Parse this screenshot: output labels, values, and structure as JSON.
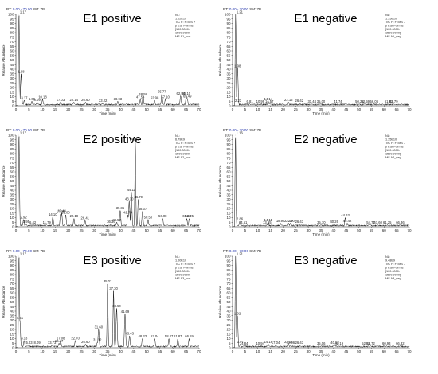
{
  "header": {
    "rt_label": "RT:",
    "rt_range": "0.00 - 70.00",
    "sm_label": "SM:",
    "sm_value": "7B"
  },
  "chart_data": [
    {
      "type": "line",
      "title": "E1 positive",
      "xlabel": "Time (min)",
      "ylabel": "Relative Abundance",
      "xlim": [
        0,
        70
      ],
      "ylim": [
        0,
        100
      ],
      "x_ticks": [
        0,
        5,
        10,
        15,
        20,
        25,
        30,
        35,
        40,
        45,
        50,
        55,
        60,
        65,
        70
      ],
      "y_ticks": [
        0,
        5,
        10,
        15,
        20,
        25,
        30,
        35,
        40,
        45,
        50,
        55,
        60,
        65,
        70,
        75,
        80,
        85,
        90,
        95,
        100
      ],
      "info": [
        "NL:",
        "1.02E10",
        "TIC F: FTMS +",
        "p ESI Full ms",
        "[100.0000-",
        "1500.0000]",
        "MS A1_pos"
      ],
      "peaks": [
        {
          "rt": 1.17,
          "value": 100,
          "label": "1.17"
        },
        {
          "rt": 1.98,
          "value": 35,
          "label": "1.98"
        },
        {
          "rt": 3.17,
          "value": 6,
          "label": "3.17"
        },
        {
          "rt": 6.09,
          "value": 5,
          "label": "6.09"
        },
        {
          "rt": 8.09,
          "value": 4,
          "label": "8.09"
        },
        {
          "rt": 10.18,
          "value": 7,
          "label": "10.18"
        },
        {
          "rt": 17.03,
          "value": 4,
          "label": "17.03"
        },
        {
          "rt": 22.14,
          "value": 4,
          "label": "22.14"
        },
        {
          "rt": 26.6,
          "value": 4,
          "label": "26.60"
        },
        {
          "rt": 33.22,
          "value": 3,
          "label": "33.22"
        },
        {
          "rt": 38.93,
          "value": 5,
          "label": "38.93"
        },
        {
          "rt": 47.54,
          "value": 7,
          "label": "47.54"
        },
        {
          "rt": 48.58,
          "value": 10,
          "label": "48.58"
        },
        {
          "rt": 52.98,
          "value": 6,
          "label": "52.98"
        },
        {
          "rt": 55.77,
          "value": 13,
          "label": "55.77"
        },
        {
          "rt": 57.1,
          "value": 7,
          "label": "57.10"
        },
        {
          "rt": 62.94,
          "value": 11,
          "label": "62.94"
        },
        {
          "rt": 65.1,
          "value": 11,
          "label": "65.10"
        },
        {
          "rt": 65.49,
          "value": 8,
          "label": "65.49"
        }
      ]
    },
    {
      "type": "line",
      "title": "E1 negative",
      "xlabel": "Time (min)",
      "ylabel": "Relative Abundance",
      "xlim": [
        0,
        70
      ],
      "ylim": [
        0,
        100
      ],
      "x_ticks": [
        0,
        5,
        10,
        15,
        20,
        25,
        30,
        35,
        40,
        45,
        50,
        55,
        60,
        65,
        70
      ],
      "y_ticks": [
        0,
        5,
        10,
        15,
        20,
        25,
        30,
        35,
        40,
        45,
        50,
        55,
        60,
        65,
        70,
        75,
        80,
        85,
        90,
        95,
        100
      ],
      "info": [
        "NL:",
        "1.35E10",
        "TIC F: FTMS -",
        "p ESI Full ms",
        "[100.0000-",
        "1500.0000]",
        "MS A1_neg"
      ],
      "peaks": [
        {
          "rt": 1.21,
          "value": 100,
          "label": "1.21"
        },
        {
          "rt": 1.98,
          "value": 41,
          "label": "1.98"
        },
        {
          "rt": 2.23,
          "value": 3,
          "label": "2.23"
        },
        {
          "rt": 6.81,
          "value": 2,
          "label": "6.81"
        },
        {
          "rt": 10.99,
          "value": 2,
          "label": "10.99"
        },
        {
          "rt": 14.14,
          "value": 5,
          "label": "14.14"
        },
        {
          "rt": 14.57,
          "value": 2,
          "label": "14.57"
        },
        {
          "rt": 22.16,
          "value": 4,
          "label": "22.16"
        },
        {
          "rt": 26.42,
          "value": 3,
          "label": "26.42"
        },
        {
          "rt": 31.44,
          "value": 2,
          "label": "31.44"
        },
        {
          "rt": 35.0,
          "value": 2,
          "label": "35.00"
        },
        {
          "rt": 41.74,
          "value": 2,
          "label": "41.74"
        },
        {
          "rt": 50.26,
          "value": 2,
          "label": "50.26"
        },
        {
          "rt": 52.59,
          "value": 2,
          "label": "52.59"
        },
        {
          "rt": 56.06,
          "value": 2,
          "label": "56.06"
        },
        {
          "rt": 61.81,
          "value": 2,
          "label": "61.81"
        },
        {
          "rt": 63.79,
          "value": 2,
          "label": "63.79"
        }
      ]
    },
    {
      "type": "line",
      "title": "E2 positive",
      "xlabel": "Time (min)",
      "ylabel": "Relative Abundance",
      "xlim": [
        0,
        70
      ],
      "ylim": [
        0,
        100
      ],
      "x_ticks": [
        0,
        5,
        10,
        15,
        20,
        25,
        30,
        35,
        40,
        45,
        50,
        55,
        60,
        65,
        70
      ],
      "y_ticks": [
        0,
        5,
        10,
        15,
        20,
        25,
        30,
        35,
        40,
        45,
        50,
        55,
        60,
        65,
        70,
        75,
        80,
        85,
        90,
        95,
        100
      ],
      "info": [
        "NL:",
        "6.79E9",
        "TIC F: FTMS +",
        "p ESI Full ms",
        "[100.0000-",
        "1500.0000]",
        "MS A2_pos"
      ],
      "peaks": [
        {
          "rt": 1.17,
          "value": 100,
          "label": "1.17"
        },
        {
          "rt": 2.92,
          "value": 8,
          "label": "2.92"
        },
        {
          "rt": 3.95,
          "value": 3,
          "label": "3.95"
        },
        {
          "rt": 6.42,
          "value": 2,
          "label": "6.42"
        },
        {
          "rt": 11.79,
          "value": 2,
          "label": "11.79"
        },
        {
          "rt": 14.1,
          "value": 11,
          "label": "14.10"
        },
        {
          "rt": 17.05,
          "value": 14,
          "label": "17.05"
        },
        {
          "rt": 17.48,
          "value": 15,
          "label": "17.48"
        },
        {
          "rt": 19.0,
          "value": 13,
          "label": "19.00"
        },
        {
          "rt": 22.18,
          "value": 9,
          "label": "22.18"
        },
        {
          "rt": 26.41,
          "value": 7,
          "label": "26.41"
        },
        {
          "rt": 36.36,
          "value": 3,
          "label": "36.36"
        },
        {
          "rt": 38.52,
          "value": 5,
          "label": "38.52"
        },
        {
          "rt": 39.85,
          "value": 18,
          "label": "39.85"
        },
        {
          "rt": 42.75,
          "value": 13,
          "label": "42.75"
        },
        {
          "rt": 43.3,
          "value": 28,
          "label": "43.30"
        },
        {
          "rt": 44.11,
          "value": 38,
          "label": "44.11"
        },
        {
          "rt": 45.62,
          "value": 93,
          "label": "45.62"
        },
        {
          "rt": 46.79,
          "value": 30,
          "label": "46.79"
        },
        {
          "rt": 48.37,
          "value": 17,
          "label": "48.37"
        },
        {
          "rt": 50.5,
          "value": 8,
          "label": "50.50"
        },
        {
          "rt": 56.08,
          "value": 9,
          "label": "56.08"
        },
        {
          "rt": 65.28,
          "value": 9,
          "label": "65.28"
        },
        {
          "rt": 66.25,
          "value": 9,
          "label": "66.25"
        }
      ]
    },
    {
      "type": "line",
      "title": "E2 negative",
      "xlabel": "Time (min)",
      "ylabel": "Relative Abundance",
      "xlim": [
        0,
        70
      ],
      "ylim": [
        0,
        100
      ],
      "x_ticks": [
        0,
        5,
        10,
        15,
        20,
        25,
        30,
        35,
        40,
        45,
        50,
        55,
        60,
        65,
        70
      ],
      "y_ticks": [
        0,
        5,
        10,
        15,
        20,
        25,
        30,
        35,
        40,
        45,
        50,
        55,
        60,
        65,
        70,
        75,
        80,
        85,
        90,
        95,
        100
      ],
      "info": [
        "NL:",
        "1.35E10",
        "TIC F: FTMS -",
        "p ESI Full ms",
        "[100.0000-",
        "1500.0000]",
        "MS A2_neg"
      ],
      "peaks": [
        {
          "rt": 1.16,
          "value": 100,
          "label": "1.16"
        },
        {
          "rt": 2.86,
          "value": 6,
          "label": "2.86"
        },
        {
          "rt": 4.51,
          "value": 2,
          "label": "4.51"
        },
        {
          "rt": 13.65,
          "value": 2,
          "label": "13.65"
        },
        {
          "rt": 14.11,
          "value": 5,
          "label": "14.11"
        },
        {
          "rt": 18.95,
          "value": 4,
          "label": "18.95"
        },
        {
          "rt": 22.17,
          "value": 4,
          "label": "22.17"
        },
        {
          "rt": 22.9,
          "value": 4,
          "label": "22.90"
        },
        {
          "rt": 26.43,
          "value": 3,
          "label": "26.43"
        },
        {
          "rt": 35.1,
          "value": 2,
          "label": "35.10"
        },
        {
          "rt": 40.26,
          "value": 3,
          "label": "40.26"
        },
        {
          "rt": 44.63,
          "value": 10,
          "label": "44.63"
        },
        {
          "rt": 45.42,
          "value": 4,
          "label": "45.42"
        },
        {
          "rt": 54.72,
          "value": 2,
          "label": "54.72"
        },
        {
          "rt": 57.6,
          "value": 2,
          "label": "57.60"
        },
        {
          "rt": 61.25,
          "value": 2,
          "label": "61.25"
        },
        {
          "rt": 66.36,
          "value": 2,
          "label": "66.36"
        }
      ]
    },
    {
      "type": "line",
      "title": "E3 positive",
      "xlabel": "Time (min)",
      "ylabel": "Relative Abundance",
      "xlim": [
        0,
        70
      ],
      "ylim": [
        0,
        100
      ],
      "x_ticks": [
        0,
        5,
        10,
        15,
        20,
        25,
        30,
        35,
        40,
        45,
        50,
        55,
        60,
        65,
        70
      ],
      "y_ticks": [
        0,
        5,
        10,
        15,
        20,
        25,
        30,
        35,
        40,
        45,
        50,
        55,
        60,
        65,
        70,
        75,
        80,
        85,
        90,
        95,
        100
      ],
      "info": [
        "NL:",
        "1.00E10",
        "TIC F: FTMS +",
        "p ESI Full ms",
        "[100.0000-",
        "1500.0000]",
        "MS A3_pos"
      ],
      "peaks": [
        {
          "rt": 1.17,
          "value": 100,
          "label": "1.17"
        },
        {
          "rt": 1.51,
          "value": 30,
          "label": "1.51"
        },
        {
          "rt": 3.13,
          "value": 8,
          "label": "3.13"
        },
        {
          "rt": 5.03,
          "value": 3,
          "label": "5.03"
        },
        {
          "rt": 8.09,
          "value": 3,
          "label": "8.09"
        },
        {
          "rt": 13.73,
          "value": 3,
          "label": "13.73"
        },
        {
          "rt": 16.47,
          "value": 5,
          "label": "16.47"
        },
        {
          "rt": 17.08,
          "value": 8,
          "label": "17.08"
        },
        {
          "rt": 22.7,
          "value": 8,
          "label": "22.70"
        },
        {
          "rt": 26.6,
          "value": 4,
          "label": "26.60"
        },
        {
          "rt": 31.12,
          "value": 6,
          "label": "31.12"
        },
        {
          "rt": 31.6,
          "value": 20,
          "label": "31.60"
        },
        {
          "rt": 35.02,
          "value": 70,
          "label": "35.02"
        },
        {
          "rt": 37.3,
          "value": 62,
          "label": "37.30"
        },
        {
          "rt": 38.5,
          "value": 43,
          "label": "38.50"
        },
        {
          "rt": 41.69,
          "value": 37,
          "label": "41.69"
        },
        {
          "rt": 43.43,
          "value": 13,
          "label": "43.43"
        },
        {
          "rt": 48.33,
          "value": 10,
          "label": "48.33"
        },
        {
          "rt": 53.04,
          "value": 10,
          "label": "53.04"
        },
        {
          "rt": 58.47,
          "value": 10,
          "label": "58.47"
        },
        {
          "rt": 61.87,
          "value": 10,
          "label": "61.87"
        },
        {
          "rt": 66.19,
          "value": 10,
          "label": "66.19"
        }
      ]
    },
    {
      "type": "line",
      "title": "E3 negative",
      "xlabel": "Time (min)",
      "ylabel": "Relative Abundance",
      "xlim": [
        0,
        70
      ],
      "ylim": [
        0,
        100
      ],
      "x_ticks": [
        0,
        5,
        10,
        15,
        20,
        25,
        30,
        35,
        40,
        45,
        50,
        55,
        60,
        65,
        70
      ],
      "y_ticks": [
        0,
        5,
        10,
        15,
        20,
        25,
        30,
        35,
        40,
        45,
        50,
        55,
        60,
        65,
        70,
        75,
        80,
        85,
        90,
        95,
        100
      ],
      "info": [
        "NL:",
        "9.48E9",
        "TIC F: FTMS -",
        "p ESI Full ms",
        "[100.0000-",
        "1500.0000]",
        "MS A3_neg"
      ],
      "peaks": [
        {
          "rt": 1.21,
          "value": 100,
          "label": "1.21"
        },
        {
          "rt": 1.92,
          "value": 35,
          "label": "1.92"
        },
        {
          "rt": 3.07,
          "value": 4,
          "label": "3.07"
        },
        {
          "rt": 4.84,
          "value": 2,
          "label": "4.84"
        },
        {
          "rt": 10.94,
          "value": 2,
          "label": "10.94"
        },
        {
          "rt": 14.16,
          "value": 4,
          "label": "14.16"
        },
        {
          "rt": 17.04,
          "value": 3,
          "label": "17.04"
        },
        {
          "rt": 22.17,
          "value": 4,
          "label": "22.17"
        },
        {
          "rt": 22.96,
          "value": 3,
          "label": "22.96"
        },
        {
          "rt": 26.43,
          "value": 3,
          "label": "26.43"
        },
        {
          "rt": 35.06,
          "value": 2,
          "label": "35.06"
        },
        {
          "rt": 40.53,
          "value": 3,
          "label": "40.53"
        },
        {
          "rt": 42.19,
          "value": 2,
          "label": "42.19"
        },
        {
          "rt": 52.82,
          "value": 2,
          "label": "52.82"
        },
        {
          "rt": 54.72,
          "value": 2,
          "label": "54.72"
        },
        {
          "rt": 60.93,
          "value": 2,
          "label": "60.93"
        },
        {
          "rt": 66.32,
          "value": 2,
          "label": "66.32"
        }
      ]
    }
  ]
}
